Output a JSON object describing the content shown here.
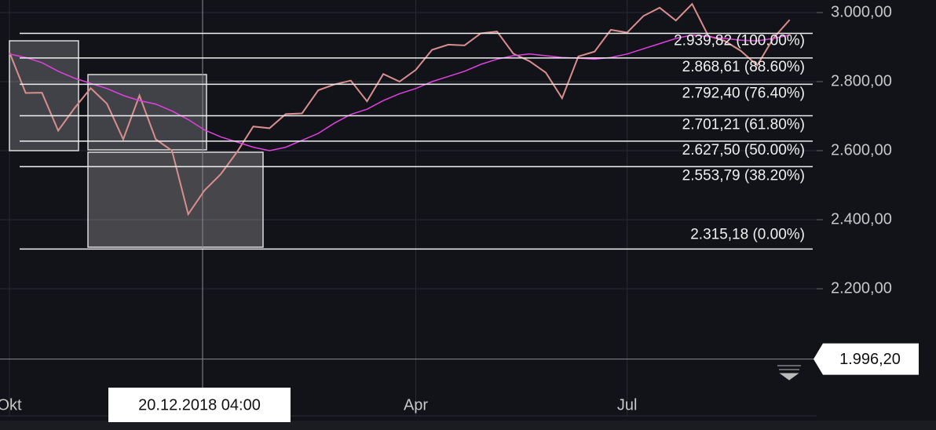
{
  "chart_data": {
    "type": "line",
    "x": [
      1,
      2,
      3,
      4,
      5,
      6,
      7,
      8,
      9,
      10,
      11,
      12,
      13,
      14,
      15,
      16,
      17,
      18,
      19,
      20,
      21,
      22,
      23,
      24,
      25,
      26,
      27,
      28,
      29,
      30,
      31,
      32,
      33,
      34,
      35,
      36,
      37,
      38,
      39,
      40,
      41,
      42,
      43,
      44,
      45,
      46,
      47,
      48,
      49
    ],
    "series": [
      {
        "color": "#d98e8e",
        "values": [
          2885,
          2767,
          2768,
          2658,
          2723,
          2781,
          2736,
          2633,
          2760,
          2633,
          2600,
          2416,
          2485,
          2532,
          2596,
          2670,
          2665,
          2706,
          2708,
          2775,
          2792,
          2803,
          2743,
          2822,
          2800,
          2834,
          2892,
          2907,
          2905,
          2940,
          2945,
          2881,
          2859,
          2826,
          2752,
          2873,
          2887,
          2950,
          2942,
          2990,
          3014,
          2977,
          3025,
          2932,
          2918,
          2889,
          2847,
          2926,
          2979
        ]
      },
      {
        "color": "#e040e0",
        "values": [
          2880,
          2870,
          2855,
          2830,
          2810,
          2795,
          2780,
          2760,
          2745,
          2735,
          2715,
          2690,
          2660,
          2640,
          2625,
          2610,
          2600,
          2610,
          2630,
          2650,
          2680,
          2705,
          2720,
          2745,
          2765,
          2780,
          2800,
          2815,
          2830,
          2850,
          2865,
          2875,
          2880,
          2875,
          2870,
          2868,
          2865,
          2870,
          2880,
          2895,
          2910,
          2925,
          2935,
          2930,
          2925,
          2920,
          2918,
          2925,
          2935
        ]
      }
    ],
    "xlim": [
      0.42,
      50.66
    ],
    "xticks": [
      {
        "value": 1,
        "label": "Okt"
      },
      {
        "value": 26,
        "label": "Apr"
      },
      {
        "value": 39,
        "label": "Jul"
      }
    ],
    "ylim": [
      3036.4,
      1900
    ],
    "yticks": [
      {
        "value": 3000,
        "label": "3.000,00"
      },
      {
        "value": 2800,
        "label": "2.800,00"
      },
      {
        "value": 2600,
        "label": "2.600,00"
      },
      {
        "value": 2400,
        "label": "2.400,00"
      },
      {
        "value": 2200,
        "label": "2.200,00"
      }
    ],
    "grid": true,
    "levels": [
      {
        "value": 2939.82,
        "label": "2.939,82 (100.00%)"
      },
      {
        "value": 2868.61,
        "label": "2.868,61 (88.60%)"
      },
      {
        "value": 2792.4,
        "label": "2.792,40 (76.40%)"
      },
      {
        "value": 2701.21,
        "label": "2.701,21 (61.80%)"
      },
      {
        "value": 2627.5,
        "label": "2.627,50 (50.00%)"
      },
      {
        "value": 2553.79,
        "label": "2.553,79 (38.20%)"
      },
      {
        "value": 2315.18,
        "label": "2.315,18 (0.00%)"
      }
    ],
    "crosshair": {
      "price": {
        "value": 1996.2,
        "label": "1.996,20"
      },
      "time": "20.12.2018 04:00"
    }
  }
}
